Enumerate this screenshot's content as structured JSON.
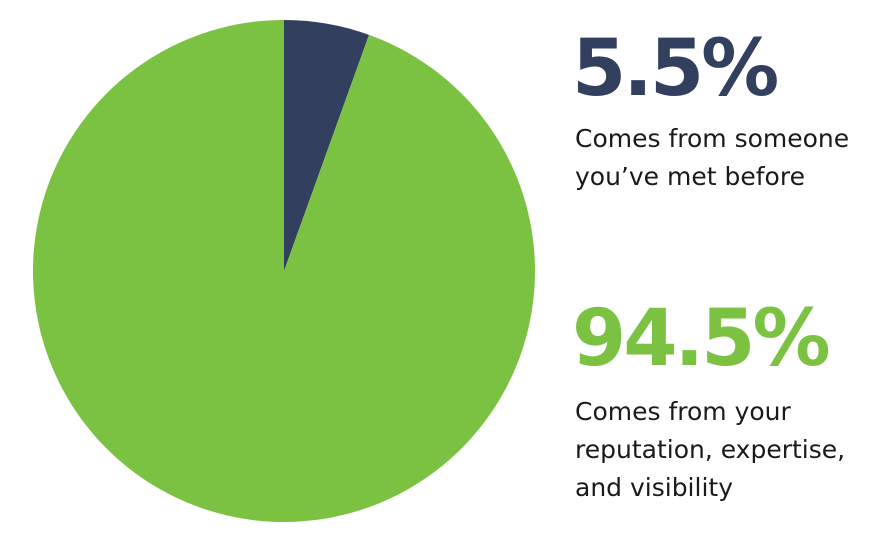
{
  "chart_data": {
    "type": "pie",
    "categories": [
      "Comes from someone you’ve met before",
      "Comes from your reputation, expertise, and visibility"
    ],
    "values": [
      5.5,
      94.5
    ],
    "value_labels": [
      "5.5%",
      "94.5%"
    ],
    "colors": [
      "#323f5e",
      "#7cc242"
    ]
  }
}
